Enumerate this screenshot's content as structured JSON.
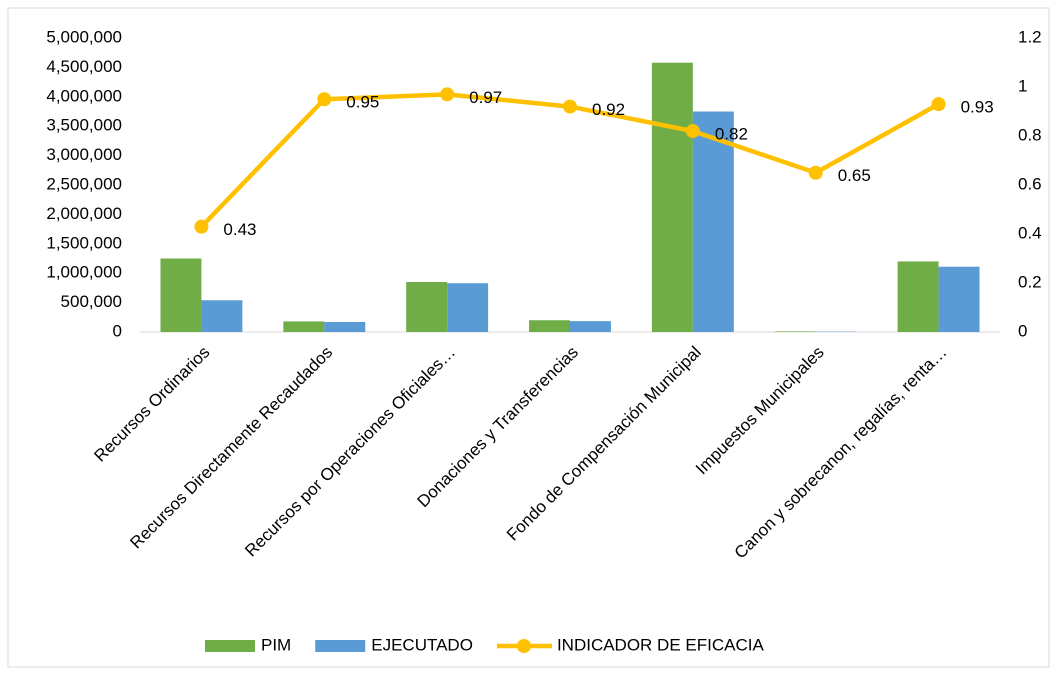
{
  "chart_data": {
    "type": "bar",
    "categories": [
      "Recursos Ordinarios",
      "Recursos Directamente Recaudados",
      "Recursos por Operaciones Oficiales…",
      "Donaciones y Transferencias",
      "Fondo de Compensación Municipal",
      "Impuestos Municipales",
      "Canon y sobrecanon, regalías, renta…"
    ],
    "series": [
      {
        "name": "PIM",
        "color": "#70ad47",
        "values": [
          1250000,
          180000,
          850000,
          200000,
          4580000,
          10000,
          1200000
        ]
      },
      {
        "name": "EJECUTADO",
        "color": "#5b9bd5",
        "values": [
          540000,
          170000,
          830000,
          185000,
          3750000,
          6000,
          1110000
        ]
      },
      {
        "name": "INDICADOR DE EFICACIA",
        "color": "#ffc000",
        "type": "line",
        "axis": "y2",
        "values": [
          0.43,
          0.95,
          0.97,
          0.92,
          0.82,
          0.65,
          0.93
        ]
      }
    ],
    "ylim": [
      0,
      5000000
    ],
    "yticks": [
      0,
      {
        "value": 500000,
        "label": "500,000"
      },
      {
        "value": 1000000,
        "label": "1,000,000"
      },
      {
        "value": 1500000,
        "label": "1,500,000"
      },
      {
        "value": 2000000,
        "label": "2,000,000"
      },
      {
        "value": 2500000,
        "label": "2,500,000"
      },
      {
        "value": 3000000,
        "label": "3,000,000"
      },
      {
        "value": 3500000,
        "label": "3,500,000"
      },
      {
        "value": 4000000,
        "label": "4,000,000"
      },
      {
        "value": 4500000,
        "label": "4,500,000"
      },
      {
        "value": 5000000,
        "label": "5,000,000"
      }
    ],
    "y2lim": [
      0,
      1.2
    ],
    "y2ticks": [
      0,
      0.2,
      0.4,
      0.6,
      0.8,
      1,
      1.2
    ],
    "grid": false,
    "legend": "bottom"
  }
}
